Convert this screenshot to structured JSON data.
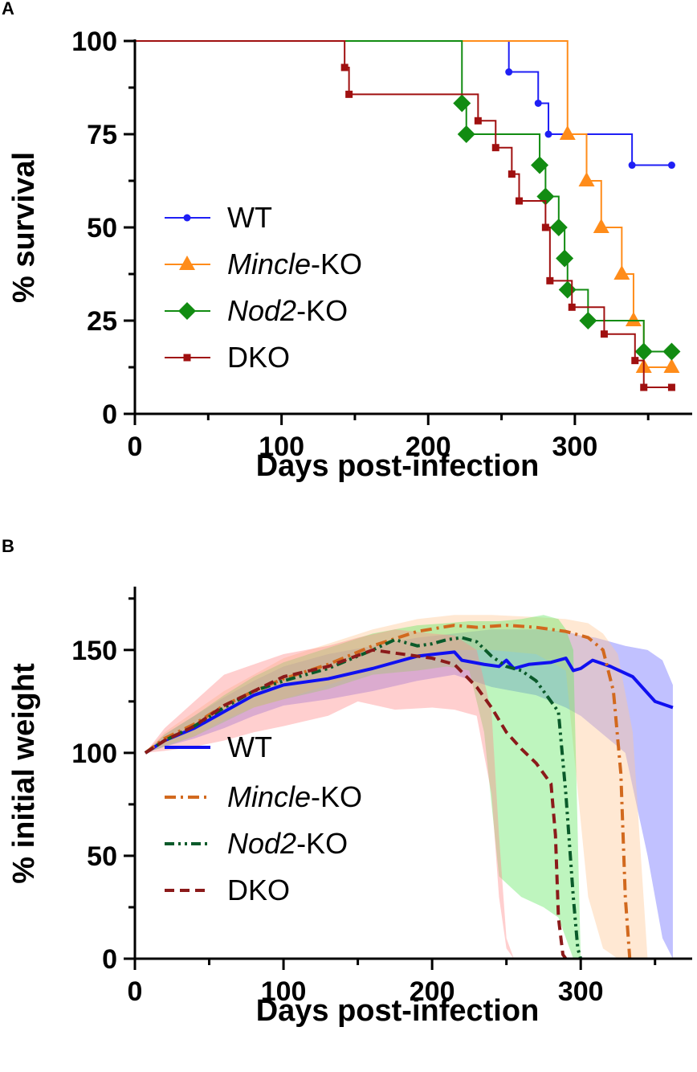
{
  "chart_data": [
    {
      "panel": "A",
      "type": "line",
      "subtype": "kaplan-meier-survival",
      "xlabel": "Days post-infection",
      "ylabel": "% survival",
      "xlim": [
        0,
        380
      ],
      "ylim": [
        0,
        100
      ],
      "xticks": [
        0,
        100,
        200,
        300
      ],
      "yticks": [
        0,
        25,
        50,
        75,
        100
      ],
      "legend_position": "left-middle",
      "series": [
        {
          "name": "WT",
          "italic": "",
          "suffix": "",
          "color": "#1f1ff5",
          "marker": "circle",
          "steps": [
            [
              0,
              100
            ],
            [
              255,
              91.7
            ],
            [
              275,
              83.3
            ],
            [
              282,
              75
            ],
            [
              339,
              66.7
            ],
            [
              366,
              66.7
            ]
          ],
          "points": [
            [
              255,
              91.7
            ],
            [
              275,
              83.3
            ],
            [
              282,
              75
            ],
            [
              339,
              66.7
            ],
            [
              366,
              66.7
            ]
          ]
        },
        {
          "name": "Mincle-KO",
          "italic": "Mincle",
          "suffix": "-KO",
          "color": "#ff8c1a",
          "marker": "triangle",
          "steps": [
            [
              0,
              100
            ],
            [
              295,
              75
            ],
            [
              308,
              62.5
            ],
            [
              318,
              50
            ],
            [
              332,
              37.5
            ],
            [
              340,
              25
            ],
            [
              347,
              12.5
            ],
            [
              366,
              12.5
            ]
          ],
          "points": [
            [
              295,
              75
            ],
            [
              308,
              62.5
            ],
            [
              318,
              50
            ],
            [
              332,
              37.5
            ],
            [
              340,
              25
            ],
            [
              347,
              12.5
            ],
            [
              366,
              12.5
            ]
          ]
        },
        {
          "name": "Nod2-KO",
          "italic": "Nod2",
          "suffix": "-KO",
          "color": "#128c12",
          "marker": "diamond",
          "steps": [
            [
              0,
              100
            ],
            [
              223,
              83.3
            ],
            [
              226,
              75
            ],
            [
              276,
              66.7
            ],
            [
              280,
              58.3
            ],
            [
              289,
              50
            ],
            [
              293,
              41.7
            ],
            [
              295,
              33.3
            ],
            [
              309,
              25
            ],
            [
              347,
              16.7
            ],
            [
              366,
              16.7
            ]
          ],
          "points": [
            [
              223,
              83.3
            ],
            [
              226,
              75
            ],
            [
              276,
              66.7
            ],
            [
              280,
              58.3
            ],
            [
              289,
              50
            ],
            [
              293,
              41.7
            ],
            [
              295,
              33.3
            ],
            [
              309,
              25
            ],
            [
              347,
              16.7
            ],
            [
              366,
              16.7
            ]
          ]
        },
        {
          "name": "DKO",
          "italic": "",
          "suffix": "",
          "color": "#a01010",
          "marker": "square",
          "steps": [
            [
              0,
              100
            ],
            [
              143,
              92.9
            ],
            [
              146,
              85.7
            ],
            [
              234,
              78.6
            ],
            [
              246,
              71.4
            ],
            [
              257,
              64.3
            ],
            [
              262,
              57.1
            ],
            [
              280,
              50
            ],
            [
              283,
              35.7
            ],
            [
              298,
              28.6
            ],
            [
              320,
              21.4
            ],
            [
              341,
              14.3
            ],
            [
              347,
              7.1
            ],
            [
              366,
              7.1
            ]
          ],
          "points": [
            [
              143,
              92.9
            ],
            [
              146,
              85.7
            ],
            [
              234,
              78.6
            ],
            [
              246,
              71.4
            ],
            [
              257,
              64.3
            ],
            [
              262,
              57.1
            ],
            [
              280,
              50
            ],
            [
              283,
              35.7
            ],
            [
              298,
              28.6
            ],
            [
              320,
              21.4
            ],
            [
              341,
              14.3
            ],
            [
              347,
              7.1
            ],
            [
              366,
              7.1
            ]
          ]
        }
      ]
    },
    {
      "panel": "B",
      "type": "line",
      "subtype": "mean-with-shaded-range",
      "xlabel": "Days post-infection",
      "ylabel": "% initial weight",
      "xlim": [
        0,
        375
      ],
      "ylim": [
        0,
        180
      ],
      "xticks": [
        0,
        100,
        200,
        300
      ],
      "yticks": [
        0,
        50,
        100,
        150
      ],
      "legend_position": "left-bottom",
      "series": [
        {
          "name": "WT",
          "italic": "",
          "suffix": "",
          "color": "#1010f0",
          "dash": "solid",
          "band_color": "#6b6bff",
          "x": [
            7,
            20,
            40,
            60,
            80,
            100,
            130,
            160,
            190,
            215,
            220,
            235,
            245,
            250,
            255,
            265,
            280,
            290,
            295,
            300,
            308,
            320,
            335,
            350,
            362
          ],
          "y": [
            100,
            106,
            112,
            120,
            128,
            133,
            136,
            141,
            147,
            149,
            145,
            143,
            142,
            145,
            141,
            143,
            144,
            146,
            140,
            141,
            145,
            142,
            137,
            125,
            122
          ],
          "band_x": [
            7,
            20,
            40,
            60,
            80,
            100,
            130,
            160,
            190,
            215,
            240,
            270,
            290,
            300,
            310,
            330,
            345,
            355,
            362
          ],
          "band_upper": [
            100,
            109,
            118,
            127,
            135,
            142,
            148,
            152,
            156,
            158,
            160,
            160,
            159,
            157,
            156,
            152,
            150,
            145,
            133
          ],
          "band_lower": [
            100,
            103,
            107,
            112,
            118,
            123,
            126,
            130,
            135,
            138,
            132,
            128,
            122,
            118,
            112,
            100,
            50,
            10,
            0
          ]
        },
        {
          "name": "Mincle-KO",
          "italic": "Mincle",
          "suffix": "-KO",
          "color": "#d2691e",
          "dash": "dash-dot",
          "band_color": "#ffc896",
          "x": [
            7,
            20,
            40,
            60,
            80,
            100,
            130,
            160,
            190,
            215,
            230,
            250,
            270,
            290,
            305,
            315,
            322,
            327,
            330,
            333
          ],
          "y": [
            100,
            107,
            114,
            123,
            130,
            136,
            143,
            152,
            159,
            162,
            161,
            162,
            161,
            159,
            156,
            150,
            130,
            90,
            30,
            0
          ],
          "band_x": [
            7,
            20,
            40,
            60,
            80,
            100,
            130,
            160,
            190,
            215,
            240,
            270,
            290,
            305,
            315,
            325,
            335,
            345
          ],
          "band_upper": [
            100,
            110,
            120,
            130,
            138,
            146,
            153,
            160,
            165,
            167,
            167,
            166,
            165,
            163,
            158,
            148,
            110,
            0
          ],
          "band_lower": [
            100,
            104,
            108,
            116,
            122,
            126,
            133,
            140,
            147,
            150,
            150,
            148,
            140,
            30,
            5,
            0,
            0,
            0
          ]
        },
        {
          "name": "Nod2-KO",
          "italic": "Nod2",
          "suffix": "-KO",
          "color": "#0a5a2a",
          "dash": "dash-dot-dot",
          "band_color": "#64e664",
          "x": [
            7,
            20,
            40,
            60,
            80,
            100,
            130,
            160,
            175,
            190,
            200,
            210,
            220,
            230,
            240,
            250,
            260,
            270,
            285,
            290,
            295,
            298,
            300
          ],
          "y": [
            100,
            106,
            113,
            122,
            130,
            135,
            141,
            150,
            155,
            152,
            153,
            155,
            156,
            154,
            147,
            142,
            140,
            135,
            120,
            80,
            30,
            5,
            0
          ],
          "band_x": [
            7,
            20,
            40,
            60,
            80,
            100,
            130,
            160,
            190,
            210,
            225,
            235,
            245,
            260,
            275,
            285,
            290,
            295,
            300
          ],
          "band_upper": [
            100,
            109,
            118,
            128,
            137,
            144,
            151,
            158,
            162,
            163,
            164,
            164,
            164,
            165,
            167,
            165,
            160,
            150,
            0
          ],
          "band_lower": [
            100,
            103,
            108,
            115,
            122,
            126,
            131,
            138,
            140,
            142,
            140,
            110,
            40,
            30,
            25,
            20,
            10,
            0,
            0
          ]
        },
        {
          "name": "DKO",
          "italic": "",
          "suffix": "",
          "color": "#8b1a1a",
          "dash": "dash",
          "band_color": "#ff8c8c",
          "x": [
            7,
            20,
            40,
            60,
            80,
            100,
            130,
            160,
            180,
            200,
            215,
            230,
            240,
            250,
            260,
            270,
            280,
            283,
            285,
            288,
            290
          ],
          "y": [
            100,
            106,
            113,
            123,
            130,
            137,
            142,
            150,
            148,
            146,
            143,
            132,
            122,
            110,
            102,
            95,
            85,
            60,
            20,
            2,
            0
          ],
          "band_x": [
            7,
            20,
            40,
            60,
            80,
            100,
            130,
            150,
            175,
            200,
            215,
            230,
            240,
            245,
            250,
            255
          ],
          "band_upper": [
            100,
            112,
            125,
            138,
            143,
            148,
            152,
            156,
            160,
            158,
            157,
            150,
            120,
            60,
            10,
            0
          ],
          "band_lower": [
            100,
            101,
            103,
            106,
            110,
            113,
            118,
            125,
            121,
            122,
            121,
            118,
            80,
            30,
            5,
            0
          ]
        }
      ]
    }
  ],
  "panels": {
    "a": {
      "letter": "A"
    },
    "b": {
      "letter": "B"
    }
  }
}
